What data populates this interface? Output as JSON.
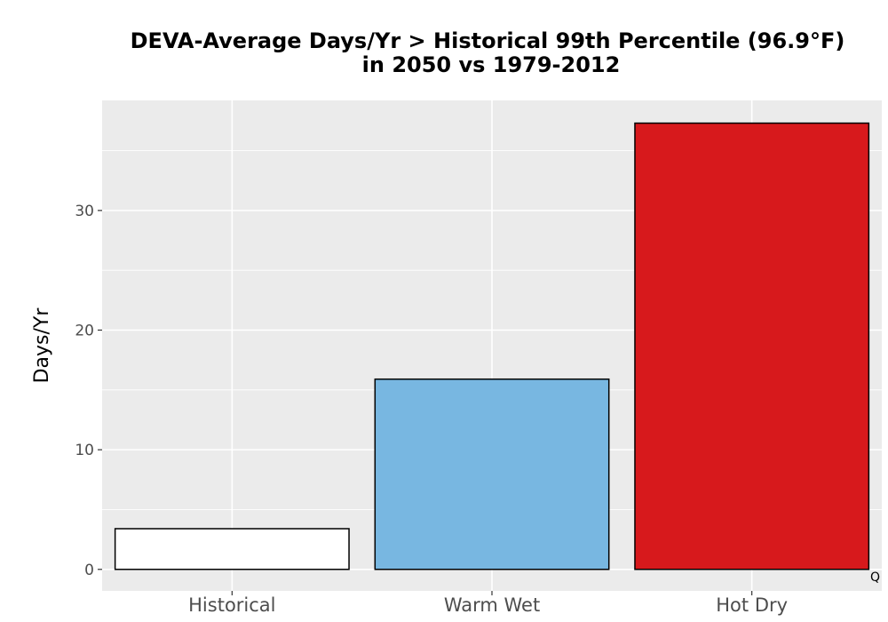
{
  "chart_data": {
    "type": "bar",
    "title": "DEVA-Average Days/Yr > Historical 99th Percentile (96.9°F)",
    "subtitle": "in 2050 vs 1979-2012",
    "xlabel": "",
    "ylabel": "Days/Yr",
    "categories": [
      "Historical",
      "Warm Wet",
      "Hot Dry"
    ],
    "values": [
      3.4,
      15.9,
      37.3
    ],
    "colors": [
      "#ffffff",
      "#78b7e1",
      "#d7191c"
    ],
    "bar_outline_color": "#000000",
    "ylim": [
      -1.8,
      39.2
    ],
    "yticks": [
      0,
      10,
      20,
      30
    ],
    "ytick_labels": [
      "0",
      "10",
      "20",
      "30"
    ],
    "grid": true,
    "panel_background": "#ebebeb",
    "legend": "none",
    "corner_note": "Q"
  }
}
